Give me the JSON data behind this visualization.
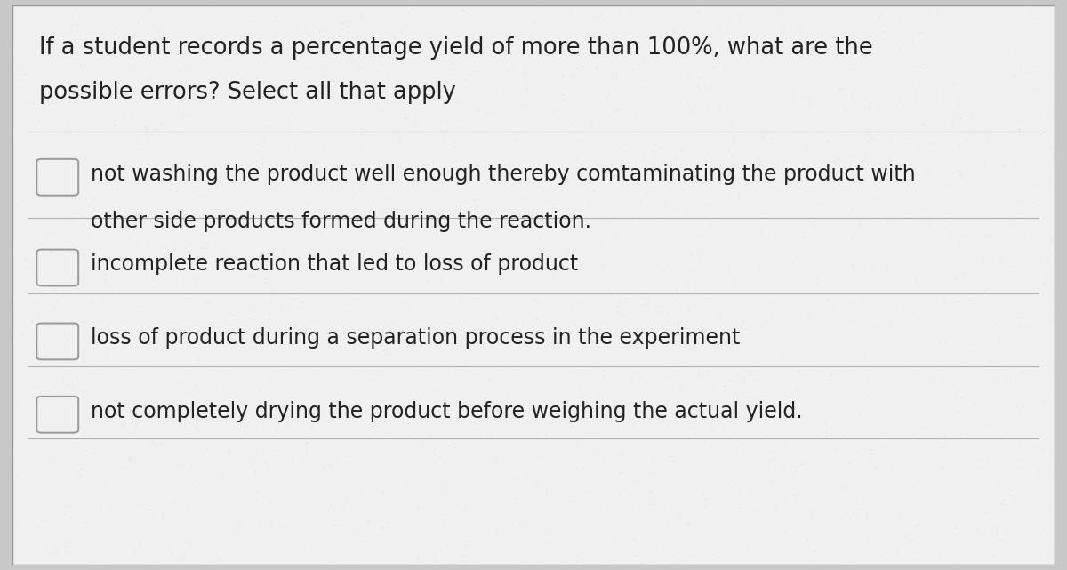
{
  "title_line1": "If a student records a percentage yield of more than 100%, what are the",
  "title_line2": "possible errors? Select all that apply",
  "options": [
    {
      "line1": "not washing the product well enough thereby comtaminating the product with",
      "line2": "other side products formed during the reaction.",
      "multiline": true
    },
    {
      "line1": "incomplete reaction that led to loss of product",
      "multiline": false
    },
    {
      "line1": "loss of product during a separation process in the experiment",
      "multiline": false
    },
    {
      "line1": "not completely drying the product before weighing the actual yield.",
      "multiline": false
    }
  ],
  "bg_color": "#c8c8c8",
  "card_color": "#f0f0f0",
  "text_color": "#222222",
  "divider_color": "#b0b0b0",
  "title_fontsize": 18.5,
  "option_fontsize": 17.0,
  "checkbox_color": "#999999",
  "border_color": "#999999"
}
